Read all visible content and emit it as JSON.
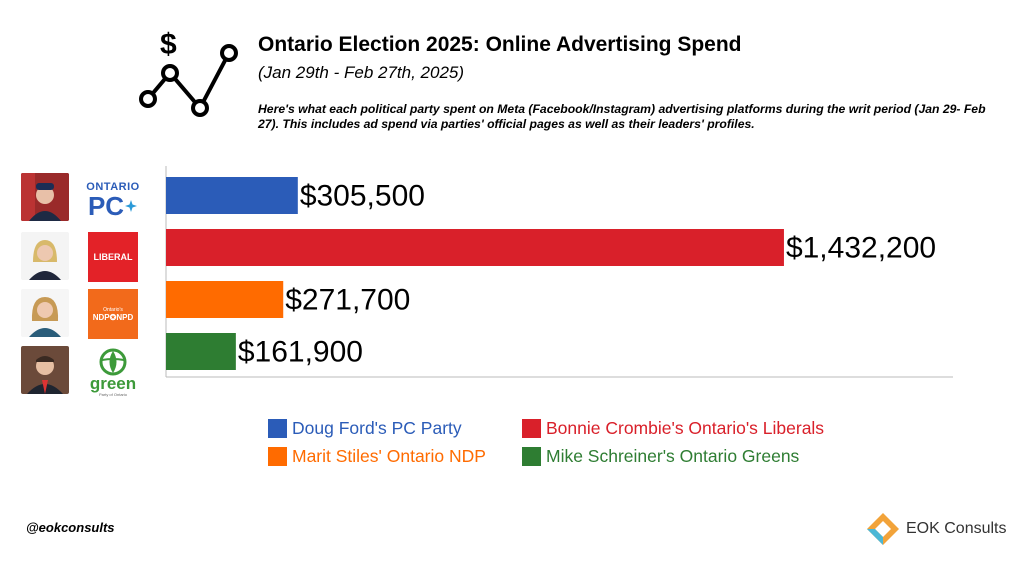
{
  "header": {
    "title": "Ontario Election 2025: Online Advertising Spend",
    "subtitle": "(Jan 29th - Feb 27th, 2025)",
    "description": "Here's what each political party spent on Meta (Facebook/Instagram) advertising platforms during the writ period (Jan 29- Feb 27). This includes ad spend via parties' official pages as well as their leaders' profiles."
  },
  "party_logos": {
    "pc": {
      "line1": "ONTARIO",
      "line2": "PC"
    },
    "liberal": {
      "text": "LIBERAL"
    },
    "ndp": {
      "small": "Ontario's",
      "text": "NDP✪NPD"
    },
    "green": {
      "text": "green",
      "small": "Party of Ontario"
    }
  },
  "chart_data": {
    "type": "bar",
    "orientation": "horizontal",
    "categories": [
      "Doug Ford's PC Party",
      "Bonnie Crombie's Ontario's Liberals",
      "Marit Stiles' Ontario NDP",
      "Mike Schreiner's Ontario Greens"
    ],
    "values": [
      305500,
      1432200,
      271700,
      161900
    ],
    "value_labels": [
      "$305,500",
      "$1,432,200",
      "$271,700",
      "$161,900"
    ],
    "colors": [
      "#2b5cb8",
      "#d9202a",
      "#ff6b00",
      "#2e7d32"
    ],
    "xlim": [
      0,
      1430000
    ],
    "grid": false,
    "legend_position": "bottom"
  },
  "legend": [
    {
      "label": "Doug Ford's PC Party",
      "color": "#2b5cb8"
    },
    {
      "label": "Bonnie Crombie's Ontario's Liberals",
      "color": "#d9202a"
    },
    {
      "label": "Marit Stiles' Ontario NDP",
      "color": "#ff6b00"
    },
    {
      "label": "Mike Schreiner's Ontario Greens",
      "color": "#2e7d32"
    }
  ],
  "footer": {
    "handle": "@eokconsults",
    "brand": "EOK Consults"
  }
}
